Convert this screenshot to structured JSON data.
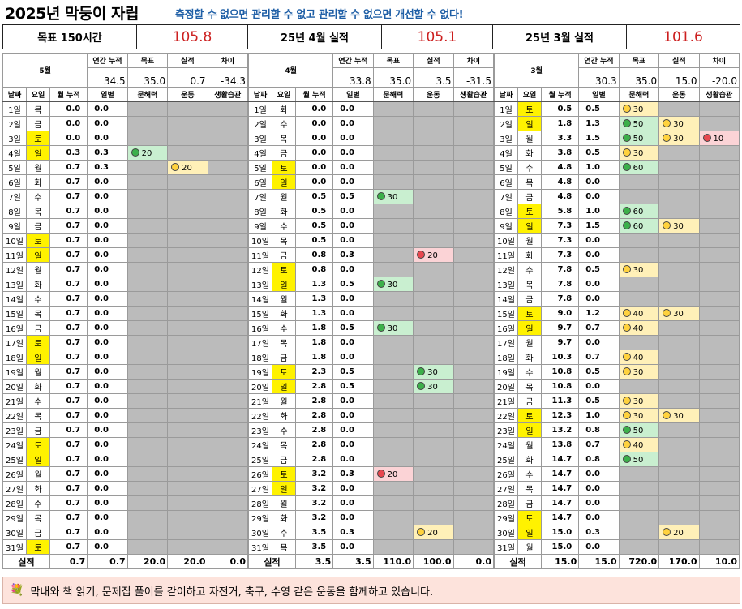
{
  "title": "2025년 막둥이 자립",
  "slogan": "측정할 수 없으면 관리할 수 없고 관리할 수 없으면 개선할 수 없다!",
  "summary": {
    "goal_label": "목표 150시간",
    "goal_value": "105.8",
    "apr_label": "25년 4월 실적",
    "apr_value": "105.1",
    "mar_label": "25년 3월 실적",
    "mar_value": "101.6"
  },
  "labels": {
    "annual": "연간 누적",
    "target": "목표",
    "actual": "실적",
    "diff": "차이",
    "date": "날짜",
    "dow": "요일",
    "monthly": "월 누적",
    "daily": "일별",
    "literacy": "문해력",
    "exercise": "운동",
    "habit": "생활습관",
    "total": "실적"
  },
  "months": [
    {
      "name": "5월",
      "annual": "34.5",
      "target": "35.0",
      "actual": "0.7",
      "diff": "-34.3",
      "totals": {
        "cum": "0.7",
        "daily": "0.7",
        "literacy": "20.0",
        "exercise": "20.0",
        "habit": "0.0"
      },
      "rows": [
        [
          "1일",
          "목",
          "0.0",
          "0.0",
          "",
          "",
          "",
          ""
        ],
        [
          "2일",
          "금",
          "0.0",
          "0.0",
          "",
          "",
          "",
          ""
        ],
        [
          "3일",
          "토",
          "0.0",
          "0.0",
          "",
          "",
          "",
          ""
        ],
        [
          "4일",
          "일",
          "0.3",
          "0.3",
          "g:20",
          "",
          "",
          ""
        ],
        [
          "5일",
          "월",
          "0.7",
          "0.3",
          "",
          "y:20",
          "",
          ""
        ],
        [
          "6일",
          "화",
          "0.7",
          "0.0",
          "",
          "",
          "",
          ""
        ],
        [
          "7일",
          "수",
          "0.7",
          "0.0",
          "",
          "",
          "",
          ""
        ],
        [
          "8일",
          "목",
          "0.7",
          "0.0",
          "",
          "",
          "",
          ""
        ],
        [
          "9일",
          "금",
          "0.7",
          "0.0",
          "",
          "",
          "",
          ""
        ],
        [
          "10일",
          "토",
          "0.7",
          "0.0",
          "",
          "",
          "",
          ""
        ],
        [
          "11일",
          "일",
          "0.7",
          "0.0",
          "",
          "",
          "",
          ""
        ],
        [
          "12일",
          "월",
          "0.7",
          "0.0",
          "",
          "",
          "",
          ""
        ],
        [
          "13일",
          "화",
          "0.7",
          "0.0",
          "",
          "",
          "",
          ""
        ],
        [
          "14일",
          "수",
          "0.7",
          "0.0",
          "",
          "",
          "",
          ""
        ],
        [
          "15일",
          "목",
          "0.7",
          "0.0",
          "",
          "",
          "",
          ""
        ],
        [
          "16일",
          "금",
          "0.7",
          "0.0",
          "",
          "",
          "",
          ""
        ],
        [
          "17일",
          "토",
          "0.7",
          "0.0",
          "",
          "",
          "",
          ""
        ],
        [
          "18일",
          "일",
          "0.7",
          "0.0",
          "",
          "",
          "",
          ""
        ],
        [
          "19일",
          "월",
          "0.7",
          "0.0",
          "",
          "",
          "",
          ""
        ],
        [
          "20일",
          "화",
          "0.7",
          "0.0",
          "",
          "",
          "",
          ""
        ],
        [
          "21일",
          "수",
          "0.7",
          "0.0",
          "",
          "",
          "",
          ""
        ],
        [
          "22일",
          "목",
          "0.7",
          "0.0",
          "",
          "",
          "",
          ""
        ],
        [
          "23일",
          "금",
          "0.7",
          "0.0",
          "",
          "",
          "",
          ""
        ],
        [
          "24일",
          "토",
          "0.7",
          "0.0",
          "",
          "",
          "",
          ""
        ],
        [
          "25일",
          "일",
          "0.7",
          "0.0",
          "",
          "",
          "",
          ""
        ],
        [
          "26일",
          "월",
          "0.7",
          "0.0",
          "",
          "",
          "",
          ""
        ],
        [
          "27일",
          "화",
          "0.7",
          "0.0",
          "",
          "",
          "",
          ""
        ],
        [
          "28일",
          "수",
          "0.7",
          "0.0",
          "",
          "",
          "",
          ""
        ],
        [
          "29일",
          "목",
          "0.7",
          "0.0",
          "",
          "",
          "",
          ""
        ],
        [
          "30일",
          "금",
          "0.7",
          "0.0",
          "",
          "",
          "",
          ""
        ],
        [
          "31일",
          "토",
          "0.7",
          "0.0",
          "",
          "",
          "",
          ""
        ]
      ]
    },
    {
      "name": "4월",
      "annual": "33.8",
      "target": "35.0",
      "actual": "3.5",
      "diff": "-31.5",
      "totals": {
        "cum": "3.5",
        "daily": "3.5",
        "literacy": "110.0",
        "exercise": "100.0",
        "habit": "0.0"
      },
      "rows": [
        [
          "1일",
          "화",
          "0.0",
          "0.0",
          "",
          "",
          ""
        ],
        [
          "2일",
          "수",
          "0.0",
          "0.0",
          "",
          "",
          ""
        ],
        [
          "3일",
          "목",
          "0.0",
          "0.0",
          "",
          "",
          ""
        ],
        [
          "4일",
          "금",
          "0.0",
          "0.0",
          "",
          "",
          ""
        ],
        [
          "5일",
          "토",
          "0.0",
          "0.0",
          "",
          "",
          ""
        ],
        [
          "6일",
          "일",
          "0.0",
          "0.0",
          "",
          "",
          ""
        ],
        [
          "7일",
          "월",
          "0.5",
          "0.5",
          "g:30",
          "",
          ""
        ],
        [
          "8일",
          "화",
          "0.5",
          "0.0",
          "",
          "",
          ""
        ],
        [
          "9일",
          "수",
          "0.5",
          "0.0",
          "",
          "",
          ""
        ],
        [
          "10일",
          "목",
          "0.5",
          "0.0",
          "",
          "",
          ""
        ],
        [
          "11일",
          "금",
          "0.8",
          "0.3",
          "",
          "r:20",
          ""
        ],
        [
          "12일",
          "토",
          "0.8",
          "0.0",
          "",
          "",
          ""
        ],
        [
          "13일",
          "일",
          "1.3",
          "0.5",
          "g:30",
          "",
          ""
        ],
        [
          "14일",
          "월",
          "1.3",
          "0.0",
          "",
          "",
          ""
        ],
        [
          "15일",
          "화",
          "1.3",
          "0.0",
          "",
          "",
          ""
        ],
        [
          "16일",
          "수",
          "1.8",
          "0.5",
          "g:30",
          "",
          ""
        ],
        [
          "17일",
          "목",
          "1.8",
          "0.0",
          "",
          "",
          ""
        ],
        [
          "18일",
          "금",
          "1.8",
          "0.0",
          "",
          "",
          ""
        ],
        [
          "19일",
          "토",
          "2.3",
          "0.5",
          "",
          "g:30",
          ""
        ],
        [
          "20일",
          "일",
          "2.8",
          "0.5",
          "",
          "g:30",
          ""
        ],
        [
          "21일",
          "월",
          "2.8",
          "0.0",
          "",
          "",
          ""
        ],
        [
          "22일",
          "화",
          "2.8",
          "0.0",
          "",
          "",
          ""
        ],
        [
          "23일",
          "수",
          "2.8",
          "0.0",
          "",
          "",
          ""
        ],
        [
          "24일",
          "목",
          "2.8",
          "0.0",
          "",
          "",
          ""
        ],
        [
          "25일",
          "금",
          "2.8",
          "0.0",
          "",
          "",
          ""
        ],
        [
          "26일",
          "토",
          "3.2",
          "0.3",
          "r:20",
          "",
          ""
        ],
        [
          "27일",
          "일",
          "3.2",
          "0.0",
          "",
          "",
          ""
        ],
        [
          "28일",
          "월",
          "3.2",
          "0.0",
          "",
          "",
          ""
        ],
        [
          "29일",
          "화",
          "3.2",
          "0.0",
          "",
          "",
          ""
        ],
        [
          "30일",
          "수",
          "3.5",
          "0.3",
          "",
          "y:20",
          ""
        ],
        [
          "31일",
          "목",
          "3.5",
          "0.0",
          "",
          "",
          ""
        ]
      ]
    },
    {
      "name": "3월",
      "annual": "30.3",
      "target": "35.0",
      "actual": "15.0",
      "diff": "-20.0",
      "totals": {
        "cum": "15.0",
        "daily": "15.0",
        "literacy": "720.0",
        "exercise": "170.0",
        "habit": "10.0"
      },
      "rows": [
        [
          "1일",
          "토",
          "0.5",
          "0.5",
          "y:30",
          "",
          ""
        ],
        [
          "2일",
          "일",
          "1.8",
          "1.3",
          "g:50",
          "y:30",
          ""
        ],
        [
          "3일",
          "월",
          "3.3",
          "1.5",
          "g:50",
          "y:30",
          "r:10"
        ],
        [
          "4일",
          "화",
          "3.8",
          "0.5",
          "y:30",
          "",
          ""
        ],
        [
          "5일",
          "수",
          "4.8",
          "1.0",
          "g:60",
          "",
          ""
        ],
        [
          "6일",
          "목",
          "4.8",
          "0.0",
          "",
          "",
          ""
        ],
        [
          "7일",
          "금",
          "4.8",
          "0.0",
          "",
          "",
          ""
        ],
        [
          "8일",
          "토",
          "5.8",
          "1.0",
          "g:60",
          "",
          ""
        ],
        [
          "9일",
          "일",
          "7.3",
          "1.5",
          "g:60",
          "y:30",
          ""
        ],
        [
          "10일",
          "월",
          "7.3",
          "0.0",
          "",
          "",
          ""
        ],
        [
          "11일",
          "화",
          "7.3",
          "0.0",
          "",
          "",
          ""
        ],
        [
          "12일",
          "수",
          "7.8",
          "0.5",
          "y:30",
          "",
          ""
        ],
        [
          "13일",
          "목",
          "7.8",
          "0.0",
          "",
          "",
          ""
        ],
        [
          "14일",
          "금",
          "7.8",
          "0.0",
          "",
          "",
          ""
        ],
        [
          "15일",
          "토",
          "9.0",
          "1.2",
          "y:40",
          "y:30",
          ""
        ],
        [
          "16일",
          "일",
          "9.7",
          "0.7",
          "y:40",
          "",
          ""
        ],
        [
          "17일",
          "월",
          "9.7",
          "0.0",
          "",
          "",
          ""
        ],
        [
          "18일",
          "화",
          "10.3",
          "0.7",
          "y:40",
          "",
          ""
        ],
        [
          "19일",
          "수",
          "10.8",
          "0.5",
          "y:30",
          "",
          ""
        ],
        [
          "20일",
          "목",
          "10.8",
          "0.0",
          "",
          "",
          ""
        ],
        [
          "21일",
          "금",
          "11.3",
          "0.5",
          "y:30",
          "",
          ""
        ],
        [
          "22일",
          "토",
          "12.3",
          "1.0",
          "y:30",
          "y:30",
          ""
        ],
        [
          "23일",
          "일",
          "13.2",
          "0.8",
          "g:50",
          "",
          ""
        ],
        [
          "24일",
          "월",
          "13.8",
          "0.7",
          "y:40",
          "",
          ""
        ],
        [
          "25일",
          "화",
          "14.7",
          "0.8",
          "g:50",
          "",
          ""
        ],
        [
          "26일",
          "수",
          "14.7",
          "0.0",
          "",
          "",
          ""
        ],
        [
          "27일",
          "목",
          "14.7",
          "0.0",
          "",
          "",
          ""
        ],
        [
          "28일",
          "금",
          "14.7",
          "0.0",
          "",
          "",
          ""
        ],
        [
          "29일",
          "토",
          "14.7",
          "0.0",
          "",
          "",
          ""
        ],
        [
          "30일",
          "일",
          "15.0",
          "0.3",
          "",
          "y:20",
          ""
        ],
        [
          "31일",
          "월",
          "15.0",
          "0.0",
          "",
          "",
          ""
        ]
      ]
    }
  ],
  "footer": {
    "emoji": "💐",
    "text": "막내와 책 읽기, 문제집 풀이를 같이하고 자전거, 축구, 수영 같은 운동을 함께하고 있습니다."
  },
  "colors": {
    "slogan": "#1f5fa6",
    "highlight_red": "#cc1f1f",
    "weekend_yellow": "#fff200",
    "empty_gray": "#bbbbbb",
    "green_fill": "#c9efd0",
    "yellow_fill": "#fff0b8",
    "red_fill": "#fbd3d6",
    "footer_bg": "#fde3dc"
  }
}
